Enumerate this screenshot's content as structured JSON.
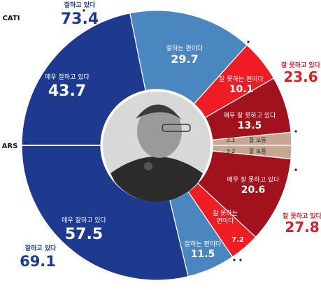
{
  "chart_data": {
    "type": "pie",
    "rings": [
      {
        "name": "CATI",
        "slices": [
          {
            "label": "매우 잘하고 있다",
            "value": 43.7,
            "group": "positive"
          },
          {
            "label": "잘하는 편이다",
            "value": 29.7,
            "group": "positive"
          },
          {
            "label": "잘 못하는 편이다",
            "value": 10.1,
            "group": "negative"
          },
          {
            "label": "매우 잘 못하고 있다",
            "value": 13.5,
            "group": "negative"
          },
          {
            "label": "잘 모름",
            "value": 3.1,
            "group": "unknown"
          }
        ],
        "summary": {
          "positive": {
            "label": "잘하고 있다",
            "value": 73.4
          },
          "negative": {
            "label": "잘 못하고 있다",
            "value": 23.6
          }
        }
      },
      {
        "name": "ARS",
        "slices": [
          {
            "label": "잘 모름",
            "value": 3.2,
            "group": "unknown"
          },
          {
            "label": "매우 잘 못하고 있다",
            "value": 20.6,
            "group": "negative"
          },
          {
            "label": "잘 못하는 편이다",
            "value": 7.2,
            "group": "negative"
          },
          {
            "label": "잘하는 편이다",
            "value": 11.5,
            "group": "positive"
          },
          {
            "label": "매우 잘하고 있다",
            "value": 57.5,
            "group": "positive"
          }
        ],
        "summary": {
          "positive": {
            "label": "잘하고 있다",
            "value": 69.1
          },
          "negative": {
            "label": "잘 못하고 있다",
            "value": 27.8
          }
        }
      }
    ],
    "colors": {
      "매우 잘하고 있다": "#1e3a8f",
      "잘하는 편이다": "#4a87c0",
      "잘 못하는 편이다": "#ef1c24",
      "매우 잘 못하고 있다": "#a2121c",
      "잘 모름": "#c4a893",
      "positive_text": "#1e3a8f",
      "negative_text": "#d6202a"
    }
  }
}
